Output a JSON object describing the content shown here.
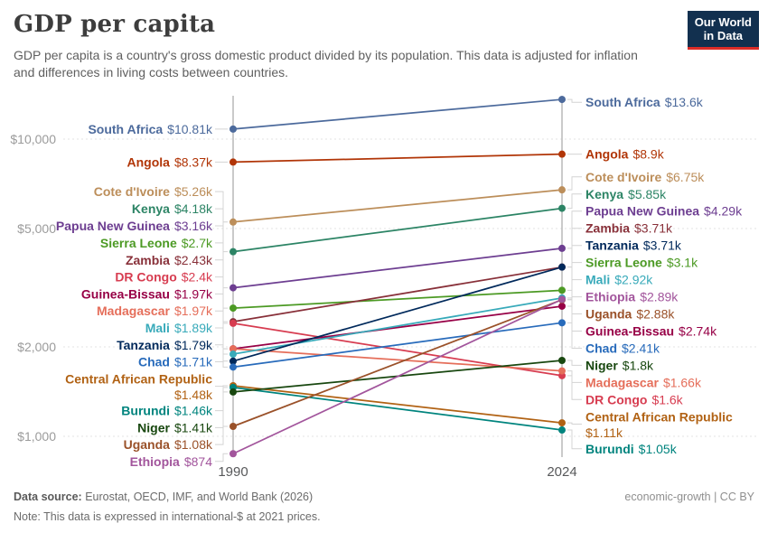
{
  "header": {
    "title": "GDP per capita",
    "subtitle": "GDP per capita is a country's gross domestic product divided by its population. This data is adjusted for inflation and differences in living costs between countries."
  },
  "logo": {
    "line1": "Our World",
    "line2": "in Data"
  },
  "footer": {
    "source_label": "Data source:",
    "source_text": " Eurostat, OECD, IMF, and World Bank (2026)",
    "note_label": "Note:",
    "note_text": " This data is expressed in international-$ at 2021 prices.",
    "attribution": "economic-growth | CC BY"
  },
  "chart_data": {
    "type": "line",
    "variant": "slope",
    "x_labels": [
      "1990",
      "2024"
    ],
    "yscale": "log",
    "ylim": [
      820,
      15000
    ],
    "grid": "dashed-horizontal",
    "legend_position": "labels-at-line-ends",
    "yticks": [
      {
        "value": 1000,
        "label": "$1,000"
      },
      {
        "value": 2000,
        "label": "$2,000"
      },
      {
        "value": 5000,
        "label": "$5,000"
      },
      {
        "value": 10000,
        "label": "$10,000"
      }
    ],
    "series": [
      {
        "name": "South Africa",
        "color": "#4C6A9C",
        "values": [
          10810,
          13600
        ],
        "labels": [
          "$10.81k",
          "$13.6k"
        ]
      },
      {
        "name": "Angola",
        "color": "#B13507",
        "values": [
          8370,
          8900
        ],
        "labels": [
          "$8.37k",
          "$8.9k"
        ]
      },
      {
        "name": "Cote d'Ivoire",
        "color": "#BC8E5A",
        "values": [
          5260,
          6750
        ],
        "labels": [
          "$5.26k",
          "$6.75k"
        ]
      },
      {
        "name": "Kenya",
        "color": "#2C8465",
        "values": [
          4180,
          5850
        ],
        "labels": [
          "$4.18k",
          "$5.85k"
        ]
      },
      {
        "name": "Papua New Guinea",
        "color": "#6D3E91",
        "values": [
          3160,
          4290
        ],
        "labels": [
          "$3.16k",
          "$4.29k"
        ]
      },
      {
        "name": "Sierra Leone",
        "color": "#4C9A24",
        "values": [
          2700,
          3100
        ],
        "labels": [
          "$2.7k",
          "$3.1k"
        ]
      },
      {
        "name": "Zambia",
        "color": "#883039",
        "values": [
          2430,
          3710
        ],
        "labels": [
          "$2.43k",
          "$3.71k"
        ]
      },
      {
        "name": "DR Congo",
        "color": "#D73C50",
        "values": [
          2400,
          1600
        ],
        "labels": [
          "$2.4k",
          "$1.6k"
        ]
      },
      {
        "name": "Guinea-Bissau",
        "color": "#970046",
        "values": [
          1970,
          2740
        ],
        "labels": [
          "$1.97k",
          "$2.74k"
        ]
      },
      {
        "name": "Madagascar",
        "color": "#E56E5A",
        "values": [
          1970,
          1660
        ],
        "labels": [
          "$1.97k",
          "$1.66k"
        ]
      },
      {
        "name": "Mali",
        "color": "#38AABA",
        "values": [
          1890,
          2920
        ],
        "labels": [
          "$1.89k",
          "$2.92k"
        ]
      },
      {
        "name": "Tanzania",
        "color": "#00295B",
        "values": [
          1790,
          3710
        ],
        "labels": [
          "$1.79k",
          "$3.71k"
        ]
      },
      {
        "name": "Chad",
        "color": "#286BBB",
        "values": [
          1710,
          2410
        ],
        "labels": [
          "$1.71k",
          "$2.41k"
        ]
      },
      {
        "name": "Central African Republic",
        "color": "#B16214",
        "values": [
          1480,
          1110
        ],
        "labels": [
          "$1.48k",
          "$1.11k"
        ]
      },
      {
        "name": "Burundi",
        "color": "#00847E",
        "values": [
          1460,
          1050
        ],
        "labels": [
          "$1.46k",
          "$1.05k"
        ]
      },
      {
        "name": "Niger",
        "color": "#18470F",
        "values": [
          1410,
          1800
        ],
        "labels": [
          "$1.41k",
          "$1.8k"
        ]
      },
      {
        "name": "Uganda",
        "color": "#9A5129",
        "values": [
          1080,
          2880
        ],
        "labels": [
          "$1.08k",
          "$2.88k"
        ]
      },
      {
        "name": "Ethiopia",
        "color": "#A2559C",
        "values": [
          874,
          2890
        ],
        "labels": [
          "$874",
          "$2.89k"
        ]
      }
    ]
  }
}
